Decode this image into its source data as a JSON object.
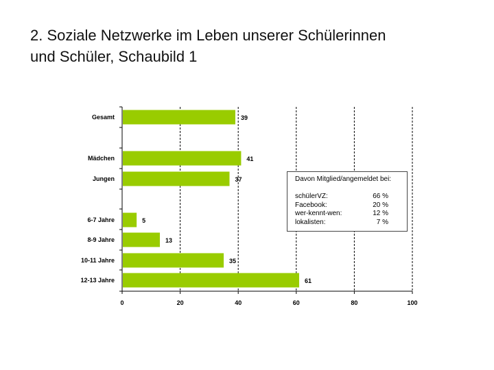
{
  "slide": {
    "title_line1": "2. Soziale Netzwerke im Leben unserer Schülerinnen",
    "title_line2": "und Schüler, Schaubild 1"
  },
  "chart_data": {
    "type": "bar",
    "orientation": "horizontal",
    "categories": [
      "Gesamt",
      "Mädchen",
      "Jungen",
      "6-7 Jahre",
      "8-9 Jahre",
      "10-11 Jahre",
      "12-13 Jahre"
    ],
    "values": [
      39,
      41,
      37,
      5,
      13,
      35,
      61
    ],
    "xlim": [
      0,
      100
    ],
    "xticks": [
      0,
      20,
      40,
      60,
      80,
      100
    ],
    "bar_color": "#99cc00",
    "grid": "vertical dashed at each tick",
    "group_separators": "blank rows after Gesamt and after Jungen"
  },
  "inset": {
    "heading": "Davon Mitglied/angemeldet bei:",
    "rows": [
      {
        "name": "schülerVZ:",
        "pct": "66 %"
      },
      {
        "name": "Facebook:",
        "pct": "20 %"
      },
      {
        "name": "wer-kennt-wen:",
        "pct": "12 %"
      },
      {
        "name": "lokalisten:",
        "pct": "7 %"
      }
    ]
  }
}
